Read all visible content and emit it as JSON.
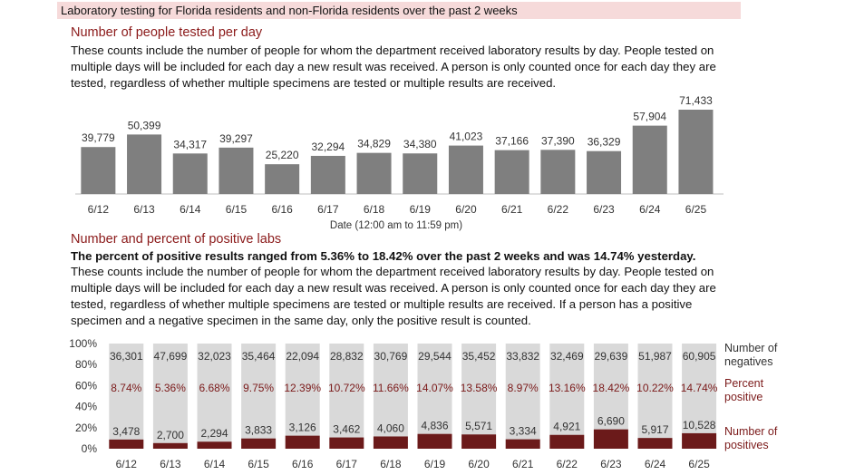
{
  "header": {
    "banner": "Laboratory testing for Florida residents and non-Florida residents over the past 2 weeks"
  },
  "section1": {
    "title": "Number of people tested per day",
    "description": "These counts include the number of people for whom the department received laboratory results by day. People tested on multiple days will be included for each day a new result was received. A person is only counted once for each day they are tested, regardless of whether multiple specimens are tested or multiple results are received."
  },
  "section2": {
    "title": "Number and percent of positive labs",
    "summary": "The percent of positive results ranged from 5.36% to 18.42% over the past 2 weeks and was 14.74% yesterday.",
    "description": "These counts include the number of people for whom the department received laboratory results by day. People tested on multiple days will be included for each day a new result was received. A person is only counted once for each day they are tested, regardless of whether multiple specimens are tested or multiple results are received. If a person has a positive specimen and a negative specimen in the same day, only the positive result is counted."
  },
  "colors": {
    "bar_gray": "#7f7f7f",
    "negative_gray": "#d9d9d9",
    "positive_red": "#6b1a1a",
    "title_red": "#8b1a1a"
  },
  "chart_data": [
    {
      "type": "bar",
      "categories": [
        "6/12",
        "6/13",
        "6/14",
        "6/15",
        "6/16",
        "6/17",
        "6/18",
        "6/19",
        "6/20",
        "6/21",
        "6/22",
        "6/23",
        "6/24",
        "6/25"
      ],
      "values": [
        39779,
        50399,
        34317,
        39297,
        25220,
        32294,
        34829,
        34380,
        41023,
        37166,
        37390,
        36329,
        57904,
        71433
      ],
      "value_labels": [
        "39,779",
        "50,399",
        "34,317",
        "39,297",
        "25,220",
        "32,294",
        "34,829",
        "34,380",
        "41,023",
        "37,166",
        "37,390",
        "36,329",
        "57,904",
        "71,433"
      ],
      "xlabel": "Date (12:00 am to 11:59 pm)",
      "ylim": [
        0,
        75000
      ],
      "grid": false
    },
    {
      "type": "bar",
      "stacked": "percent",
      "categories": [
        "6/12",
        "6/13",
        "6/14",
        "6/15",
        "6/16",
        "6/17",
        "6/18",
        "6/19",
        "6/20",
        "6/21",
        "6/22",
        "6/23",
        "6/24",
        "6/25"
      ],
      "y_ticks": [
        "100%",
        "80%",
        "60%",
        "40%",
        "20%",
        "0%"
      ],
      "ylim": [
        0,
        100
      ],
      "series": [
        {
          "name": "Number of negatives",
          "values": [
            36301,
            47699,
            32023,
            35464,
            22094,
            28832,
            30769,
            29544,
            35452,
            33832,
            32469,
            29639,
            51987,
            60905
          ],
          "labels": [
            "36,301",
            "47,699",
            "32,023",
            "35,464",
            "22,094",
            "28,832",
            "30,769",
            "29,544",
            "35,452",
            "33,832",
            "32,469",
            "29,639",
            "51,987",
            "60,905"
          ]
        },
        {
          "name": "Percent positive",
          "values": [
            8.74,
            5.36,
            6.68,
            9.75,
            12.39,
            10.72,
            11.66,
            14.07,
            13.58,
            8.97,
            13.16,
            18.42,
            10.22,
            14.74
          ],
          "labels": [
            "8.74%",
            "5.36%",
            "6.68%",
            "9.75%",
            "12.39%",
            "10.72%",
            "11.66%",
            "14.07%",
            "13.58%",
            "8.97%",
            "13.16%",
            "18.42%",
            "10.22%",
            "14.74%"
          ]
        },
        {
          "name": "Number of positives",
          "values": [
            3478,
            2700,
            2294,
            3833,
            3126,
            3462,
            4060,
            4836,
            5571,
            3334,
            4921,
            6690,
            5917,
            10528
          ],
          "labels": [
            "3,478",
            "2,700",
            "2,294",
            "3,833",
            "3,126",
            "3,462",
            "4,060",
            "4,836",
            "5,571",
            "3,334",
            "4,921",
            "6,690",
            "5,917",
            "10,528"
          ]
        }
      ],
      "legend": {
        "negatives": [
          "Number of",
          "negatives"
        ],
        "percent": [
          "Percent",
          "positive"
        ],
        "positives": [
          "Number of",
          "positives"
        ]
      },
      "legend_position": "right"
    }
  ]
}
